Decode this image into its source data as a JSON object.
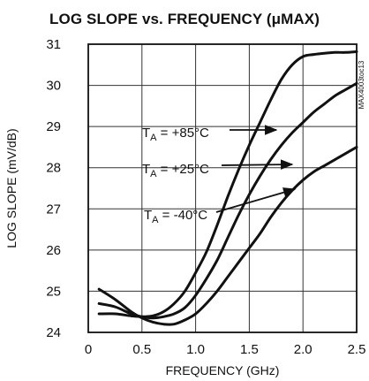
{
  "chart_data": {
    "type": "line",
    "title": "LOG SLOPE vs. FREQUENCY (μMAX)",
    "xlabel": "FREQUENCY (GHz)",
    "ylabel": "LOG SLOPE (mV/dB)",
    "xlim": [
      0,
      2.5
    ],
    "ylim": [
      24,
      31
    ],
    "xticks": [
      "0",
      "0.5",
      "1.0",
      "1.5",
      "2.0",
      "2.5"
    ],
    "yticks": [
      "24",
      "25",
      "26",
      "27",
      "28",
      "29",
      "30",
      "31"
    ],
    "grid": true,
    "side_label": "MAX4003toc13",
    "series": [
      {
        "name": "T_A = +85°C",
        "annotation": {
          "prefix": "T",
          "subscript": "A",
          "suffix": " = +85°C"
        },
        "x": [
          0.1,
          0.25,
          0.4,
          0.5,
          0.6,
          0.7,
          0.8,
          0.9,
          1.0,
          1.1,
          1.2,
          1.3,
          1.4,
          1.5,
          1.6,
          1.7,
          1.8,
          1.9,
          2.0,
          2.1,
          2.2,
          2.3,
          2.4,
          2.5
        ],
        "y": [
          24.45,
          24.45,
          24.4,
          24.38,
          24.4,
          24.5,
          24.7,
          25.0,
          25.45,
          25.95,
          26.6,
          27.3,
          27.95,
          28.55,
          29.1,
          29.65,
          30.15,
          30.5,
          30.7,
          30.75,
          30.78,
          30.8,
          30.8,
          30.82
        ]
      },
      {
        "name": "T_A = +25°C",
        "annotation": {
          "prefix": "T",
          "subscript": "A",
          "suffix": " = +25°C"
        },
        "x": [
          0.1,
          0.25,
          0.4,
          0.5,
          0.6,
          0.7,
          0.8,
          0.9,
          1.0,
          1.1,
          1.2,
          1.3,
          1.4,
          1.5,
          1.6,
          1.7,
          1.8,
          1.9,
          2.0,
          2.1,
          2.2,
          2.3,
          2.4,
          2.5
        ],
        "y": [
          24.7,
          24.62,
          24.45,
          24.38,
          24.35,
          24.38,
          24.45,
          24.6,
          24.9,
          25.3,
          25.75,
          26.3,
          26.85,
          27.35,
          27.8,
          28.2,
          28.55,
          28.85,
          29.1,
          29.35,
          29.55,
          29.75,
          29.9,
          30.05
        ]
      },
      {
        "name": "T_A = -40°C",
        "annotation": {
          "prefix": "T",
          "subscript": "A",
          "suffix": " = -40°C"
        },
        "x": [
          0.1,
          0.25,
          0.4,
          0.5,
          0.6,
          0.7,
          0.8,
          0.9,
          1.0,
          1.1,
          1.2,
          1.3,
          1.4,
          1.5,
          1.6,
          1.7,
          1.8,
          1.9,
          2.0,
          2.1,
          2.2,
          2.3,
          2.4,
          2.5
        ],
        "y": [
          25.05,
          24.8,
          24.5,
          24.35,
          24.25,
          24.2,
          24.2,
          24.3,
          24.45,
          24.7,
          25.0,
          25.35,
          25.7,
          26.05,
          26.4,
          26.8,
          27.15,
          27.45,
          27.7,
          27.9,
          28.05,
          28.2,
          28.35,
          28.5
        ]
      }
    ]
  }
}
